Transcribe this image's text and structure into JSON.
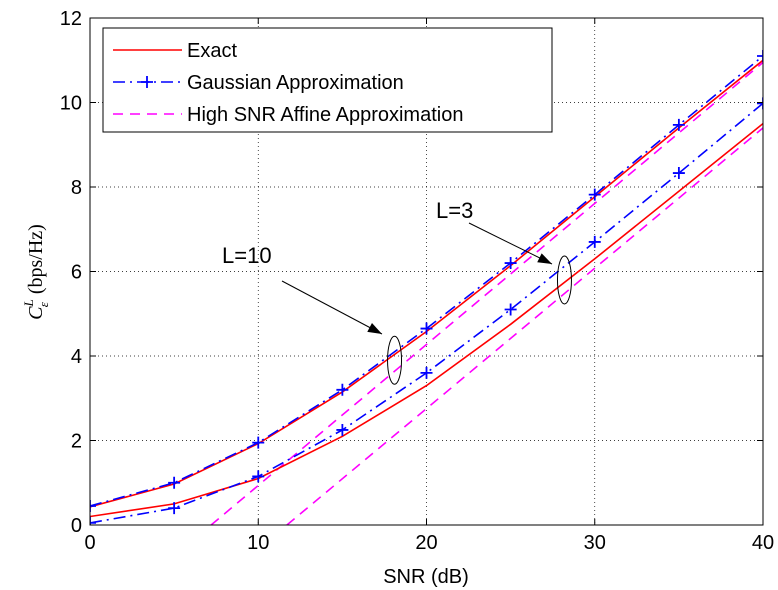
{
  "chart_data": {
    "type": "line",
    "xlabel": "SNR (dB)",
    "ylabel": {
      "main": "C",
      "sup": "L",
      "sub": "ε",
      "units": "(bps/Hz)"
    },
    "xlim": [
      0,
      40
    ],
    "ylim": [
      0,
      12
    ],
    "xticks": [
      "0",
      "10",
      "20",
      "30",
      "40"
    ],
    "yticks": [
      "0",
      "2",
      "4",
      "6",
      "8",
      "10",
      "12"
    ],
    "grid": true,
    "legend_position": "top-left",
    "colors": {
      "exact": "#ff0000",
      "gaussian": "#0000ff",
      "affine": "#ff00ff"
    },
    "series": [
      {
        "name": "Exact",
        "group": "L=10",
        "style": "solid",
        "color": "#ff0000",
        "x": [
          0,
          5,
          10,
          15,
          20,
          25,
          30,
          35,
          40
        ],
        "y": [
          0.43,
          0.97,
          1.93,
          3.15,
          4.58,
          6.14,
          7.77,
          9.4,
          11.0
        ]
      },
      {
        "name": "Gaussian Approximation",
        "group": "L=10",
        "style": "dashdot",
        "marker": "+",
        "color": "#0000ff",
        "x": [
          0,
          5,
          10,
          15,
          20,
          25,
          30,
          35,
          40
        ],
        "y": [
          0.45,
          1.0,
          1.95,
          3.2,
          4.65,
          6.2,
          7.82,
          9.47,
          11.1
        ]
      },
      {
        "name": "High SNR Affine Approximation",
        "group": "L=10",
        "style": "dashed",
        "color": "#ff00ff",
        "x": [
          7.2,
          40
        ],
        "y": [
          0,
          10.95
        ]
      },
      {
        "name": "Exact",
        "group": "L=3",
        "style": "solid",
        "color": "#ff0000",
        "x": [
          0,
          5,
          10,
          15,
          20,
          25,
          30,
          35,
          40
        ],
        "y": [
          0.2,
          0.5,
          1.1,
          2.1,
          3.3,
          4.75,
          6.3,
          7.9,
          9.5
        ]
      },
      {
        "name": "Gaussian Approximation",
        "group": "L=3",
        "style": "dashdot",
        "marker": "+",
        "color": "#0000ff",
        "x": [
          0,
          5,
          10,
          15,
          20,
          25,
          30,
          35,
          40
        ],
        "y": [
          0.05,
          0.4,
          1.15,
          2.25,
          3.6,
          5.1,
          6.7,
          8.33,
          9.98
        ]
      },
      {
        "name": "High SNR Affine Approximation",
        "group": "L=3",
        "style": "dashed",
        "color": "#ff00ff",
        "x": [
          11.7,
          40
        ],
        "y": [
          0,
          9.4
        ]
      }
    ],
    "annotations": [
      {
        "text": "L=10",
        "x_data": 18.1,
        "y_data": 3.9
      },
      {
        "text": "L=3",
        "x_data": 28.2,
        "y_data": 5.8
      }
    ]
  },
  "legend": {
    "items": [
      {
        "label": "Exact",
        "style": "solid",
        "color": "#ff0000",
        "marker": ""
      },
      {
        "label": "Gaussian Approximation",
        "style": "dashdot",
        "color": "#0000ff",
        "marker": "+"
      },
      {
        "label": "High SNR Affine Approximation",
        "style": "dashed",
        "color": "#ff00ff",
        "marker": ""
      }
    ]
  }
}
